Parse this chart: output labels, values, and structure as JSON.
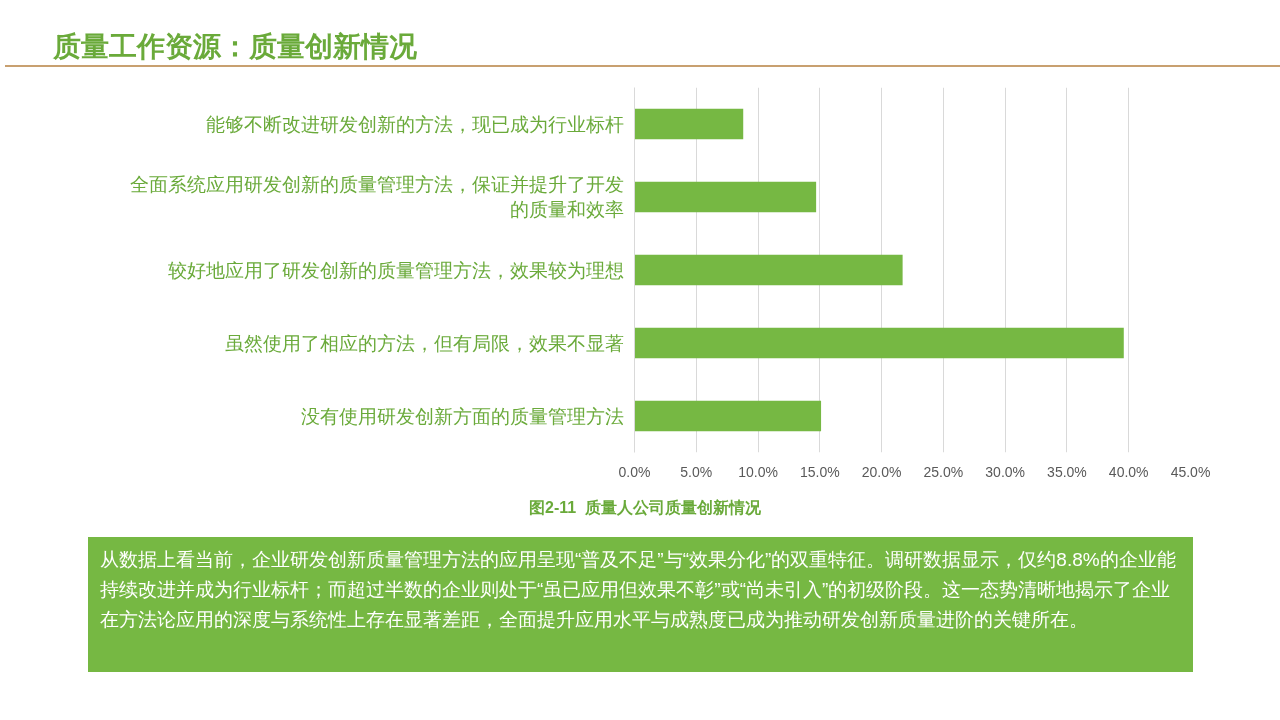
{
  "chart_data": {
    "type": "bar",
    "orientation": "horizontal",
    "title": "质量工作资源：质量创新情况",
    "categories": [
      "能够不断改进研发创新的方法，现已成为行业标杆",
      "全面系统应用研发创新的质量管理方法，保证并提升了开发的质量和效率",
      "较好地应用了研发创新的质量管理方法，效果较为理想",
      "虽然使用了相应的方法，但有局限，效果不显著",
      "没有使用研发创新方面的质量管理方法"
    ],
    "values": [
      8.8,
      14.7,
      21.7,
      39.6,
      15.1
    ],
    "color": "#76b843",
    "xlim": [
      0,
      45
    ],
    "xticks": [
      {
        "value": 0,
        "label": "0.0%"
      },
      {
        "value": 5,
        "label": "5.0%"
      },
      {
        "value": 10,
        "label": "10.0%"
      },
      {
        "value": 15,
        "label": "15.0%"
      },
      {
        "value": 20,
        "label": "20.0%"
      },
      {
        "value": 25,
        "label": "25.0%"
      },
      {
        "value": 30,
        "label": "30.0%"
      },
      {
        "value": 35,
        "label": "35.0%"
      },
      {
        "value": 40,
        "label": "40.0%"
      },
      {
        "value": 45,
        "label": "45.0%"
      }
    ],
    "grid": "x",
    "annotations": [
      "图2-11  质量人公司质量创新情况",
      "从数据上看当前，企业研发创新质量管理方法的应用呈现“普及不足”与“效果分化”的双重特征。调研数据显示，仅约8.8%的企业能持续改进并成为行业标杆；而超过半数的企业则处于“虽已应用但效果不彰”或“尚未引入”的初级阶段。这一态势清晰地揭示了企业在方法论应用的深度与系统性上存在显著差距，全面提升应用水平与成熟度已成为推动研发创新质量进阶的关键所在。"
    ]
  }
}
